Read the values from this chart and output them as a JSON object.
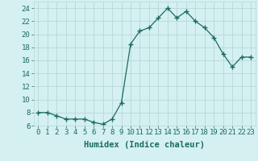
{
  "x": [
    0,
    1,
    2,
    3,
    4,
    5,
    6,
    7,
    8,
    9,
    10,
    11,
    12,
    13,
    14,
    15,
    16,
    17,
    18,
    19,
    20,
    21,
    22,
    23
  ],
  "y": [
    8,
    8,
    7.5,
    7,
    7,
    7,
    6.5,
    6.2,
    7,
    9.5,
    18.5,
    20.5,
    21,
    22.5,
    24,
    22.5,
    23.5,
    22,
    21,
    19.5,
    17,
    15,
    16.5,
    16.5
  ],
  "line_color": "#1a6b5e",
  "marker": "+",
  "marker_size": 4,
  "bg_color": "#d4f0f0",
  "grid_color": "#b8d8d8",
  "xlabel": "Humidex (Indice chaleur)",
  "xlim": [
    -0.5,
    23.5
  ],
  "ylim": [
    6,
    25
  ],
  "yticks": [
    6,
    8,
    10,
    12,
    14,
    16,
    18,
    20,
    22,
    24
  ],
  "xticks": [
    0,
    1,
    2,
    3,
    4,
    5,
    6,
    7,
    8,
    9,
    10,
    11,
    12,
    13,
    14,
    15,
    16,
    17,
    18,
    19,
    20,
    21,
    22,
    23
  ],
  "xlabel_fontsize": 7.5,
  "tick_fontsize": 6.5,
  "lw": 0.9
}
